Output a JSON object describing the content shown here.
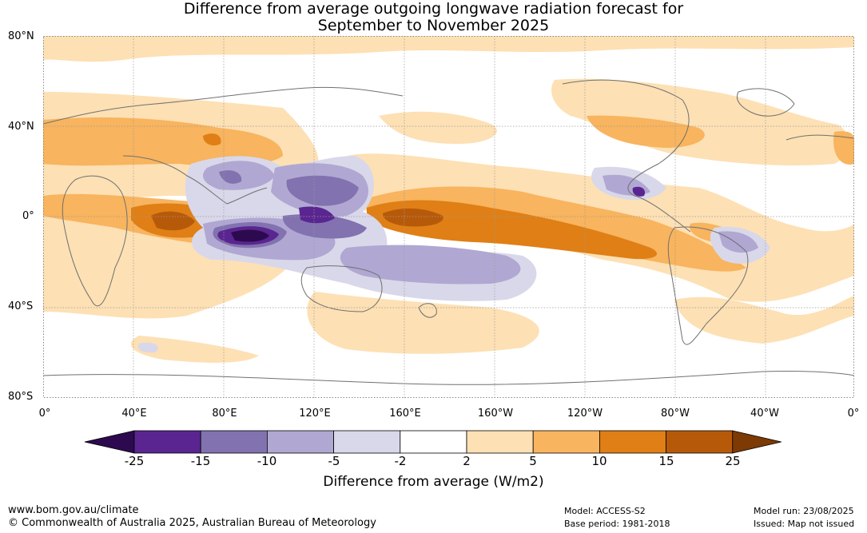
{
  "title_line1": "Difference from average outgoing longwave radiation forecast for",
  "title_line2": "September to November 2025",
  "lat_labels": [
    "80°N",
    "40°N",
    "0°",
    "40°S",
    "80°S"
  ],
  "lon_labels": [
    "0°",
    "40°E",
    "80°E",
    "120°E",
    "160°E",
    "160°W",
    "120°W",
    "80°W",
    "40°W",
    "0°"
  ],
  "colorbar": {
    "ticks": [
      "-25",
      "-15",
      "-10",
      "-5",
      "-2",
      "2",
      "5",
      "10",
      "15",
      "25"
    ],
    "colors": [
      "#2d0a4f",
      "#5a2590",
      "#8272b0",
      "#b0a8d2",
      "#d9d8ea",
      "#ffffff",
      "#fde0b4",
      "#f8b45e",
      "#df7f16",
      "#b65a0a",
      "#7d3a05"
    ],
    "label": "Difference from average (W/m2)"
  },
  "footer": {
    "url": "www.bom.gov.au/climate",
    "copyright": "© Commonwealth of Australia 2025, Australian Bureau of Meteorology",
    "model": "Model: ACCESS-S2",
    "base_period": "Base period: 1981-2018",
    "model_run": "Model run: 23/08/2025",
    "issued": "Issued: Map not issued"
  },
  "map_colors": {
    "ocean_bg": "#ffffff",
    "coast": "#707070",
    "grid": "#9a9a9a"
  }
}
